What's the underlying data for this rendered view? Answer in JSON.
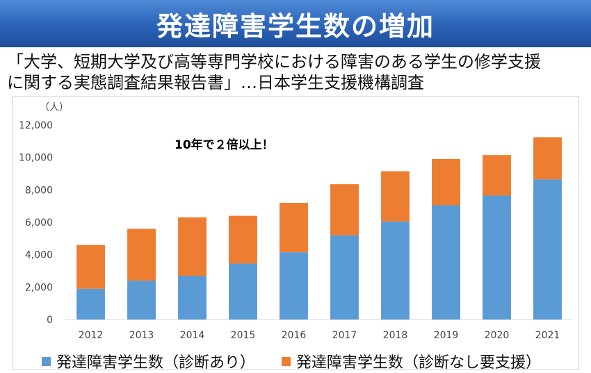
{
  "header": {
    "title": "発達障害学生数の増加"
  },
  "subtitle": {
    "line1": "「大学、短期大学及び高等専門学校における障害のある学生の修学支援",
    "line2": "に関する実態調査結果報告書」…日本学生支援機構調査"
  },
  "chart_data": {
    "type": "stacked-bar",
    "unit_label": "（人）",
    "annotation": "10年で２倍以上！",
    "categories": [
      "2012",
      "2013",
      "2014",
      "2015",
      "2016",
      "2017",
      "2018",
      "2019",
      "2020",
      "2021"
    ],
    "ylim": [
      0,
      12000
    ],
    "yticks": [
      0,
      2000,
      4000,
      6000,
      8000,
      10000,
      12000
    ],
    "ytick_labels": [
      "0",
      "2,000",
      "4,000",
      "6,000",
      "8,000",
      "10,000",
      "12,000"
    ],
    "grid": false,
    "legend_position": "bottom",
    "series": [
      {
        "name": "発達障害学生数（診断あり）",
        "color": "#5b9bd5",
        "values": [
          1900,
          2400,
          2700,
          3450,
          4150,
          5200,
          6050,
          7050,
          7650,
          8650
        ]
      },
      {
        "name": "発達障害学生数（診断なし要支援）",
        "color": "#ed7d31",
        "values": [
          2700,
          3200,
          3600,
          2950,
          3050,
          3150,
          3100,
          2850,
          2500,
          2600
        ]
      }
    ]
  }
}
